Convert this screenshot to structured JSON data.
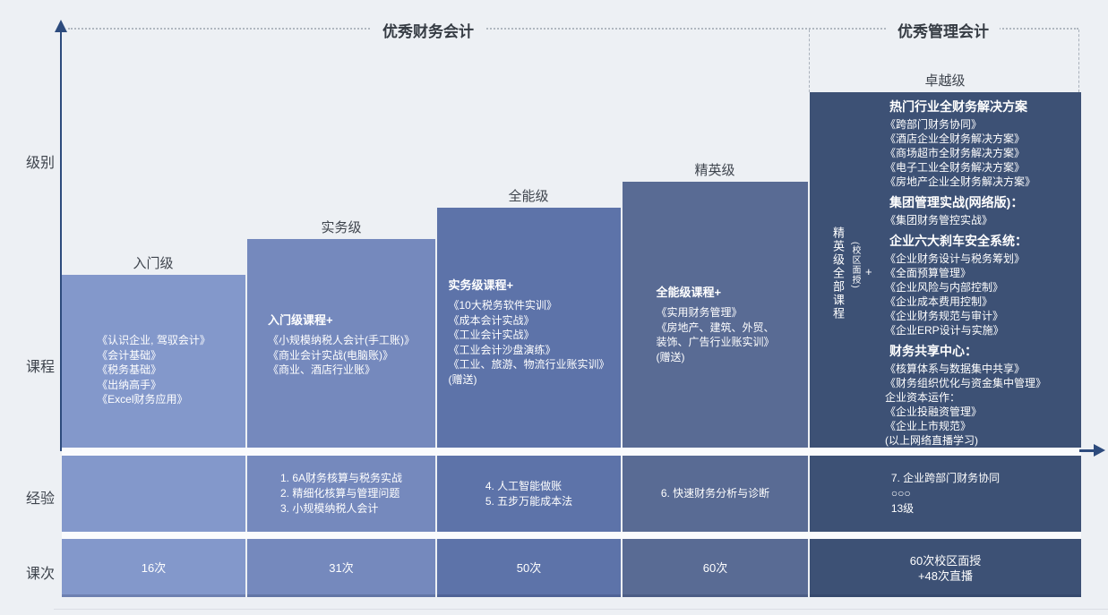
{
  "canvas": {
    "bg": "#edf0f4",
    "axis_color": "#2d4b7d",
    "gap_color": "#fafbfd"
  },
  "headers": {
    "financial": "优秀财务会计",
    "management": "优秀管理会计"
  },
  "row_labels": {
    "level": "级别",
    "course": "课程",
    "experience": "经验",
    "sessions": "课次"
  },
  "columns": [
    {
      "level": "入门级",
      "color": "#8398cb",
      "course_header": "",
      "courses": [
        "《认识企业, 驾驭会计》",
        "《会计基础》",
        "《税务基础》",
        "《出纳高手》",
        "《Excel财务应用》"
      ],
      "experience": [],
      "sessions": [
        "16次"
      ]
    },
    {
      "level": "实务级",
      "color": "#7589bd",
      "course_header": "入门级课程+",
      "courses": [
        "《小规模纳税人会计(手工账)》",
        "《商业会计实战(电脑账)》",
        "《商业、酒店行业账》"
      ],
      "experience": [
        "1. 6A财务核算与税务实战",
        "2. 精细化核算与管理问题",
        "3. 小规模纳税人会计"
      ],
      "sessions": [
        "31次"
      ]
    },
    {
      "level": "全能级",
      "color": "#5d73a9",
      "course_header": "实务级课程+",
      "courses": [
        "《10大税务软件实训》",
        "《成本会计实战》",
        "《工业会计实战》",
        "《工业会计沙盘演练》",
        "《工业、旅游、物流行业账实训》",
        "(赠送)"
      ],
      "experience": [
        "4. 人工智能做账",
        "5. 五步万能成本法"
      ],
      "sessions": [
        "50次"
      ]
    },
    {
      "level": "精英级",
      "color": "#596b94",
      "course_header": "全能级课程+",
      "courses": [
        "《实用财务管理》",
        "《房地产、建筑、外贸、",
        "装饰、广告行业账实训》",
        "(赠送)"
      ],
      "experience": [
        "6. 快速财务分析与诊断"
      ],
      "sessions": [
        "60次"
      ]
    },
    {
      "level": "卓越级",
      "color": "#3d5175",
      "vertical_note": {
        "main": "精英级全部课程",
        "sub": "(校区面授)",
        "plus": "+"
      },
      "sections": [
        {
          "heading": "热门行业全财务解决方案",
          "items": [
            "《跨部门财务协同》",
            "《酒店企业全财务解决方案》",
            "《商场超市全财务解决方案》",
            "《电子工业全财务解决方案》",
            "《房地产企业全财务解决方案》"
          ]
        },
        {
          "heading": "集团管理实战(网络版)：",
          "items": [
            "《集团财务管控实战》"
          ]
        },
        {
          "heading": "企业六大刹车安全系统：",
          "items": [
            "《企业财务设计与税务筹划》",
            "《全面预算管理》",
            "《企业风险与内部控制》",
            "《企业成本费用控制》",
            "《企业财务规范与审计》",
            "《企业ERP设计与实施》"
          ]
        },
        {
          "heading": "财务共享中心：",
          "items": [
            "《核算体系与数据集中共享》",
            "《财务组织优化与资金集中管理》",
            "企业资本运作：",
            "《企业投融资管理》",
            "《企业上市规范》",
            "(以上网络直播学习)"
          ]
        }
      ],
      "experience": [
        "7. 企业跨部门财务协同",
        "○○○",
        "13级"
      ],
      "sessions": [
        "60次校区面授",
        "+48次直播"
      ]
    }
  ]
}
